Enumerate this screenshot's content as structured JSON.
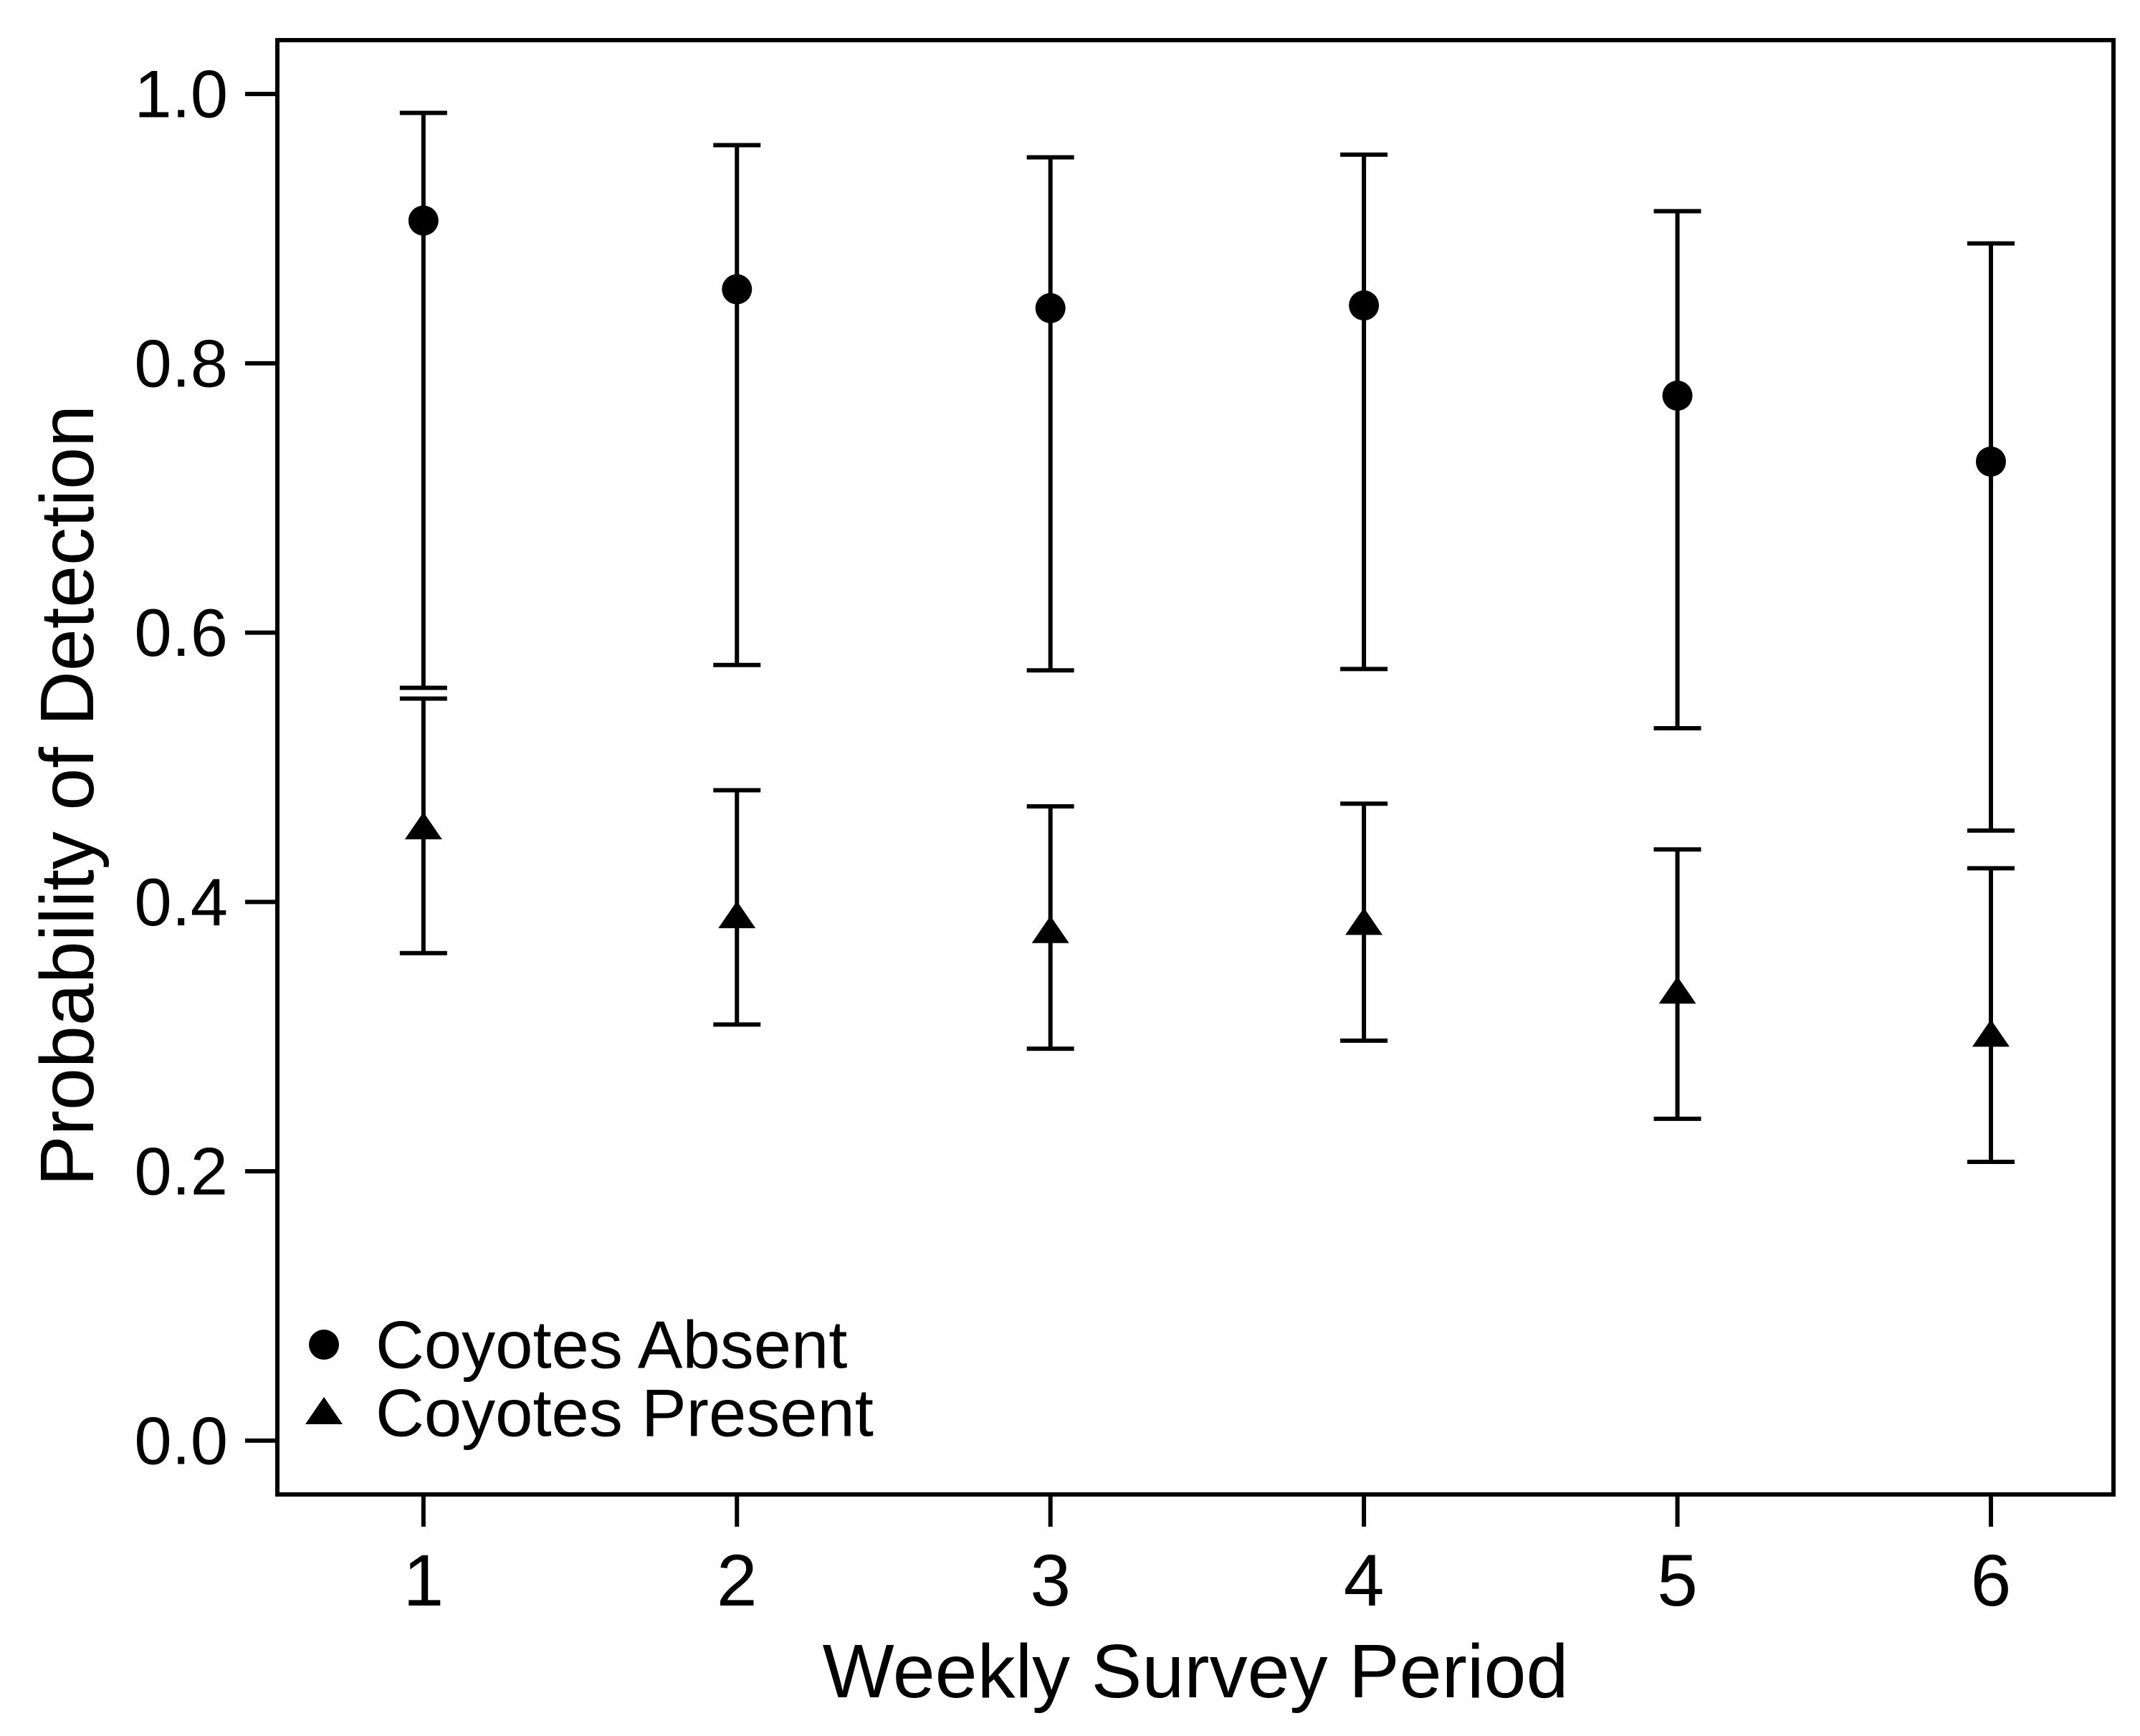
{
  "figure": {
    "background": "#ffffff",
    "ink": "#000000"
  },
  "chart_data": {
    "type": "scatter",
    "title": "",
    "xlabel": "Weekly Survey Period",
    "ylabel": "Probability of Detection",
    "categories": [
      1,
      2,
      3,
      4,
      5,
      6
    ],
    "x_tick_labels": [
      "1",
      "2",
      "3",
      "4",
      "5",
      "6"
    ],
    "y_ticks": [
      0.0,
      0.2,
      0.4,
      0.6,
      0.8,
      1.0
    ],
    "y_tick_labels": [
      "0.0",
      "0.2",
      "0.4",
      "0.6",
      "0.8",
      "1.0"
    ],
    "xlim": [
      0.534,
      6.391
    ],
    "ylim": [
      -0.04,
      1.04
    ],
    "grid": false,
    "legend_position": "bottom-left-inside",
    "error_bars": "95% confidence intervals",
    "series": [
      {
        "name": "Coyotes Absent",
        "marker": "circle",
        "color": "#000000",
        "values": [
          0.906,
          0.855,
          0.841,
          0.843,
          0.776,
          0.727
        ],
        "ci_low": [
          0.559,
          0.576,
          0.572,
          0.573,
          0.529,
          0.453
        ],
        "ci_high": [
          0.986,
          0.962,
          0.953,
          0.955,
          0.913,
          0.889
        ]
      },
      {
        "name": "Coyotes Present",
        "marker": "triangle",
        "color": "#000000",
        "values": [
          0.455,
          0.389,
          0.378,
          0.384,
          0.333,
          0.301
        ],
        "ci_low": [
          0.362,
          0.309,
          0.291,
          0.297,
          0.239,
          0.207
        ],
        "ci_high": [
          0.551,
          0.483,
          0.471,
          0.473,
          0.439,
          0.425
        ]
      }
    ]
  }
}
